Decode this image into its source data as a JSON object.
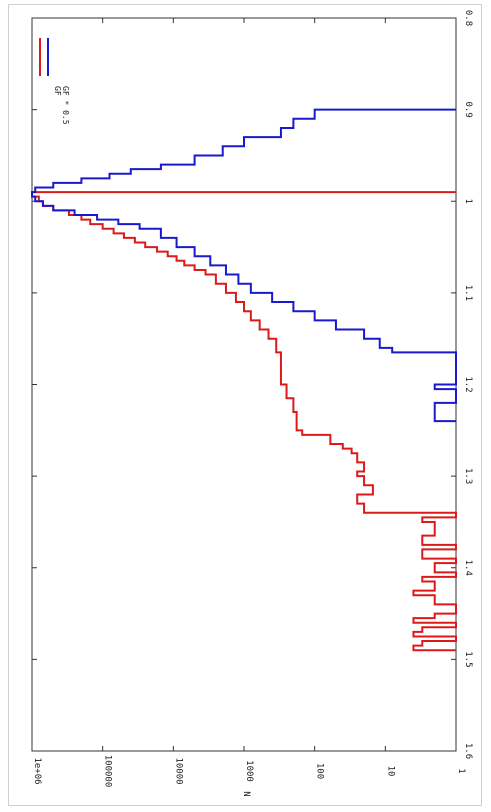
{
  "chart_data": {
    "type": "step",
    "orientation": "rotated-90",
    "x_scale": "linear",
    "y_scale": "log",
    "xlim": [
      0.8,
      1.6
    ],
    "ylim": [
      1,
      1000000
    ],
    "x_ticks": [
      "0.8",
      "0.9",
      "1",
      "1.1",
      "1.2",
      "1.3",
      "1.4",
      "1.5",
      "1.6"
    ],
    "y_ticks": [
      "1",
      "10",
      "100",
      "1000",
      "10000",
      "100000",
      "1e+06"
    ],
    "xlabel": "",
    "ylabel": "N",
    "legend_position": "top-right",
    "grid": false,
    "series": [
      {
        "name": "GF",
        "color": "#dd1a1a",
        "points": [
          [
            0.99,
            1
          ],
          [
            0.99,
            1000000
          ],
          [
            0.995,
            800000
          ],
          [
            1.0,
            700000
          ],
          [
            1.005,
            500000
          ],
          [
            1.01,
            300000
          ],
          [
            1.015,
            200000
          ],
          [
            1.02,
            150000
          ],
          [
            1.025,
            100000
          ],
          [
            1.03,
            70000
          ],
          [
            1.035,
            50000
          ],
          [
            1.04,
            35000
          ],
          [
            1.045,
            25000
          ],
          [
            1.05,
            17000
          ],
          [
            1.055,
            12000
          ],
          [
            1.06,
            9000
          ],
          [
            1.065,
            7000
          ],
          [
            1.07,
            5000
          ],
          [
            1.075,
            3500
          ],
          [
            1.08,
            2500
          ],
          [
            1.09,
            1800
          ],
          [
            1.1,
            1300
          ],
          [
            1.11,
            1000
          ],
          [
            1.12,
            800
          ],
          [
            1.13,
            600
          ],
          [
            1.14,
            450
          ],
          [
            1.15,
            350
          ],
          [
            1.165,
            300
          ],
          [
            1.2,
            250
          ],
          [
            1.215,
            200
          ],
          [
            1.23,
            180
          ],
          [
            1.25,
            150
          ],
          [
            1.255,
            60
          ],
          [
            1.265,
            40
          ],
          [
            1.27,
            30
          ],
          [
            1.275,
            25
          ],
          [
            1.285,
            20
          ],
          [
            1.295,
            25
          ],
          [
            1.3,
            20
          ],
          [
            1.31,
            15
          ],
          [
            1.32,
            25
          ],
          [
            1.33,
            20
          ],
          [
            1.34,
            1
          ],
          [
            1.345,
            3
          ],
          [
            1.35,
            2
          ],
          [
            1.365,
            3
          ],
          [
            1.375,
            1
          ],
          [
            1.38,
            3
          ],
          [
            1.39,
            1
          ],
          [
            1.395,
            2
          ],
          [
            1.405,
            1
          ],
          [
            1.41,
            3
          ],
          [
            1.415,
            2
          ],
          [
            1.425,
            4
          ],
          [
            1.43,
            2
          ],
          [
            1.44,
            1
          ],
          [
            1.45,
            2
          ],
          [
            1.455,
            4
          ],
          [
            1.46,
            1
          ],
          [
            1.465,
            3
          ],
          [
            1.47,
            4
          ],
          [
            1.475,
            1
          ],
          [
            1.48,
            3
          ],
          [
            1.485,
            4
          ],
          [
            1.49,
            1
          ]
        ]
      },
      {
        "name": "GF * 0.5",
        "color": "#1a1acc",
        "points": [
          [
            0.9,
            1
          ],
          [
            0.9,
            100
          ],
          [
            0.91,
            200
          ],
          [
            0.92,
            300
          ],
          [
            0.93,
            1000
          ],
          [
            0.94,
            2000
          ],
          [
            0.95,
            5000
          ],
          [
            0.96,
            15000
          ],
          [
            0.965,
            40000
          ],
          [
            0.97,
            80000
          ],
          [
            0.975,
            200000
          ],
          [
            0.98,
            500000
          ],
          [
            0.985,
            900000
          ],
          [
            0.99,
            1000000
          ],
          [
            0.995,
            900000
          ],
          [
            1.0,
            700000
          ],
          [
            1.005,
            500000
          ],
          [
            1.01,
            250000
          ],
          [
            1.015,
            120000
          ],
          [
            1.02,
            60000
          ],
          [
            1.025,
            30000
          ],
          [
            1.03,
            15000
          ],
          [
            1.04,
            9000
          ],
          [
            1.05,
            5000
          ],
          [
            1.06,
            3000
          ],
          [
            1.07,
            1800
          ],
          [
            1.08,
            1200
          ],
          [
            1.09,
            800
          ],
          [
            1.1,
            400
          ],
          [
            1.11,
            200
          ],
          [
            1.12,
            100
          ],
          [
            1.13,
            50
          ],
          [
            1.14,
            20
          ],
          [
            1.15,
            12
          ],
          [
            1.16,
            8
          ],
          [
            1.165,
            1
          ],
          [
            1.2,
            1
          ],
          [
            1.2,
            2
          ],
          [
            1.205,
            1
          ],
          [
            1.22,
            1
          ],
          [
            1.22,
            2
          ],
          [
            1.24,
            2
          ],
          [
            1.24,
            1
          ]
        ]
      }
    ]
  }
}
